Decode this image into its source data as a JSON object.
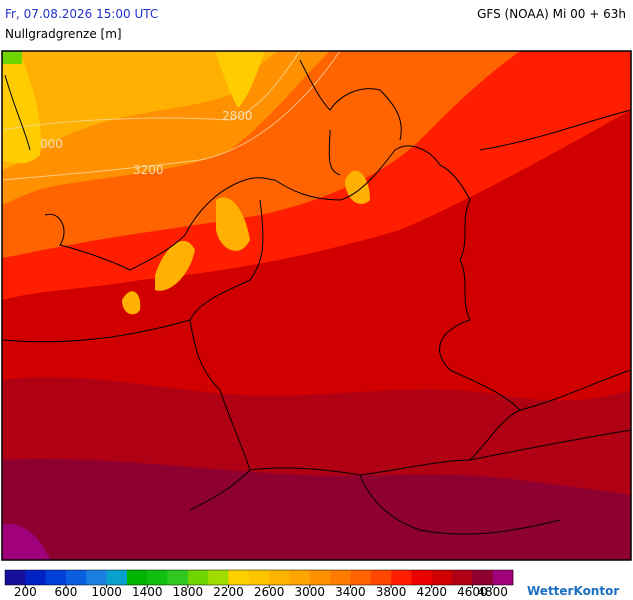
{
  "header": {
    "valid_time": "Fr, 07.08.2026 15:00 UTC",
    "model": "GFS (NOAA) Mi 00 + 63h",
    "parameter": "Nullgradgrenze [m]"
  },
  "contour_labels": [
    "2800",
    "3200",
    "000"
  ],
  "colorbar": {
    "lim": [
      0,
      5000
    ],
    "colors": [
      "#14109c",
      "#0024c4",
      "#0040d8",
      "#0a5ee0",
      "#1a80e0",
      "#08a0cc",
      "#00b400",
      "#10c010",
      "#30c820",
      "#70d400",
      "#a0dc00",
      "#ffd000",
      "#ffc400",
      "#ffb400",
      "#ffa400",
      "#ff9000",
      "#ff7c00",
      "#ff6400",
      "#ff4600",
      "#ff1e00",
      "#ee0000",
      "#d00000",
      "#b00014",
      "#8e0030",
      "#a0007a"
    ],
    "ticks": [
      200,
      600,
      1000,
      1400,
      1800,
      2200,
      2600,
      3000,
      3400,
      3800,
      4200,
      4600,
      4800
    ]
  },
  "brand": "WetterKontor"
}
